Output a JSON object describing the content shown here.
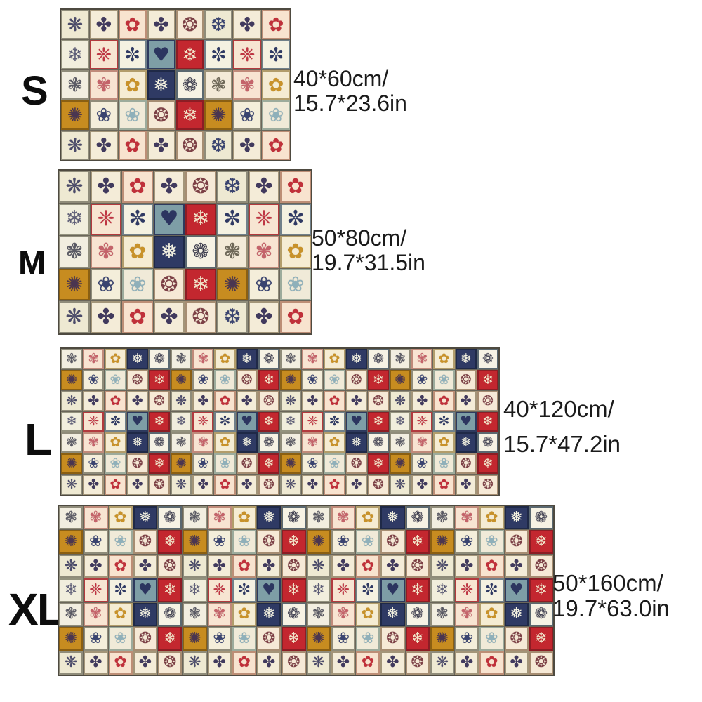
{
  "page": {
    "background": "#ffffff",
    "text_color": "#1b1b1b",
    "grout_color": "#6a665a"
  },
  "sizes": [
    {
      "id": "s",
      "label": "S",
      "size_cm": "40*60cm/",
      "size_in": "15.7*23.6in",
      "pattern": "small"
    },
    {
      "id": "m",
      "label": "M",
      "size_cm": "50*80cm/",
      "size_in": "19.7*31.5in",
      "pattern": "small"
    },
    {
      "id": "l",
      "label": "L",
      "size_cm": "40*120cm/",
      "size_in": "15.7*47.2in",
      "pattern": "large"
    },
    {
      "id": "xl",
      "label": "XL",
      "size_cm": "50*160cm/",
      "size_in": "19.7*63.0in",
      "pattern": "large"
    }
  ],
  "patterns": {
    "small": {
      "cols": 8,
      "rows": [
        [
          "w_snow",
          "clover",
          "red_flower",
          "clover",
          "maroon_snow",
          "pinwheel",
          "clover",
          "red_flower"
        ],
        [
          "fine_snow",
          "red_damask",
          "navy_snow",
          "teal_heart",
          "red_tile",
          "navy_snow",
          "red_damask",
          "navy_snow"
        ],
        [
          "lattice",
          "pink_floral",
          "mustard_flower",
          "navy_tile",
          "medallion",
          "gray_floral",
          "pink_floral",
          "mustard_flower"
        ],
        [
          "mustard_tile",
          "navy_flower",
          "sage_flower",
          "maroon_snow",
          "red_tile",
          "mustard_tile",
          "navy_flower",
          "sage_flower"
        ],
        [
          "w_snow",
          "clover",
          "red_flower",
          "clover",
          "maroon_snow",
          "pinwheel",
          "clover",
          "red_flower"
        ]
      ]
    },
    "large": {
      "cols": 20,
      "rows": [
        [
          "lattice",
          "pink_floral",
          "mustard_flower",
          "navy_tile",
          "medallion"
        ],
        [
          "mustard_tile",
          "navy_flower",
          "sage_flower",
          "maroon_snow",
          "red_tile"
        ],
        [
          "w_snow",
          "clover",
          "red_flower",
          "clover",
          "maroon_snow"
        ],
        [
          "fine_snow",
          "red_damask",
          "navy_snow",
          "teal_heart",
          "red_tile"
        ],
        [
          "lattice",
          "pink_floral",
          "mustard_flower",
          "navy_tile",
          "medallion"
        ],
        [
          "mustard_tile",
          "navy_flower",
          "sage_flower",
          "maroon_snow",
          "red_tile"
        ],
        [
          "w_snow",
          "clover",
          "red_flower",
          "clover",
          "maroon_snow"
        ]
      ]
    }
  },
  "tile_palette": {
    "w_snow": {
      "bg": "#eee9d2",
      "bd": "#8f8c7a",
      "fg": "#4b4b6a",
      "glyph": "❋",
      "icon": "snowflake-icon"
    },
    "clover": {
      "bg": "#f4ecd8",
      "bd": "#a39579",
      "fg": "#413a5e",
      "glyph": "✤",
      "icon": "clover-flower-icon"
    },
    "red_flower": {
      "bg": "#f8e3cf",
      "bd": "#bd8e76",
      "fg": "#c0303a",
      "glyph": "✿",
      "icon": "flower-icon"
    },
    "maroon_snow": {
      "bg": "#f6e9d6",
      "bd": "#a68d72",
      "fg": "#7d4046",
      "glyph": "❂",
      "icon": "snowflake-icon"
    },
    "pinwheel": {
      "bg": "#eee9d2",
      "bd": "#8f8c7a",
      "fg": "#3a4470",
      "glyph": "❆",
      "icon": "snowflake-icon"
    },
    "fine_snow": {
      "bg": "#f1eedd",
      "bd": "#93927e",
      "fg": "#5e5e78",
      "glyph": "❄",
      "icon": "snowflake-icon"
    },
    "red_damask": {
      "bg": "#f7e5d2",
      "bd": "#b23a3e",
      "fg": "#bf3543",
      "glyph": "❈",
      "icon": "damask-motif-icon"
    },
    "navy_snow": {
      "bg": "#f4f1e1",
      "bd": "#70808a",
      "fg": "#2f3a64",
      "glyph": "✼",
      "icon": "snowflake-icon"
    },
    "teal_heart": {
      "bg": "#7e9ea6",
      "bd": "#2e3a5e",
      "fg": "#2c3560",
      "glyph": "♥",
      "icon": "heart-icon"
    },
    "red_tile": {
      "bg": "#c3272f",
      "bd": "#8c1d24",
      "fg": "#f3e4c9",
      "glyph": "❄",
      "icon": "snowflake-icon"
    },
    "lattice": {
      "bg": "#f2eee0",
      "bd": "#8f8c7a",
      "fg": "#5a5a64",
      "glyph": "❃",
      "icon": "floral-lattice-icon"
    },
    "pink_floral": {
      "bg": "#f8e4d2",
      "bd": "#c08a7a",
      "fg": "#c4636a",
      "glyph": "✾",
      "icon": "flower-icon"
    },
    "mustard_flower": {
      "bg": "#f5ecd3",
      "bd": "#b29d6b",
      "fg": "#c8922a",
      "glyph": "✿",
      "icon": "flower-icon"
    },
    "navy_tile": {
      "bg": "#2f3a64",
      "bd": "#1f2947",
      "fg": "#f2f0e0",
      "glyph": "❅",
      "icon": "snowflake-icon"
    },
    "medallion": {
      "bg": "#f6f2e4",
      "bd": "#5a6870",
      "fg": "#3c3c4e",
      "glyph": "❁",
      "icon": "medallion-flower-icon"
    },
    "mustard_tile": {
      "bg": "#c78c20",
      "bd": "#8a5f12",
      "fg": "#4a3550",
      "glyph": "✺",
      "icon": "sunburst-flower-icon"
    },
    "navy_flower": {
      "bg": "#f4eeda",
      "bd": "#8f8c7a",
      "fg": "#3a4470",
      "glyph": "❀",
      "icon": "flower-icon"
    },
    "sage_flower": {
      "bg": "#f0ead8",
      "bd": "#9cab9c",
      "fg": "#8fb0ba",
      "glyph": "❀",
      "icon": "flower-icon"
    },
    "gray_floral": {
      "bg": "#f3ead8",
      "bd": "#9c9278",
      "fg": "#6e6858",
      "glyph": "❃",
      "icon": "floral-lattice-icon"
    }
  }
}
